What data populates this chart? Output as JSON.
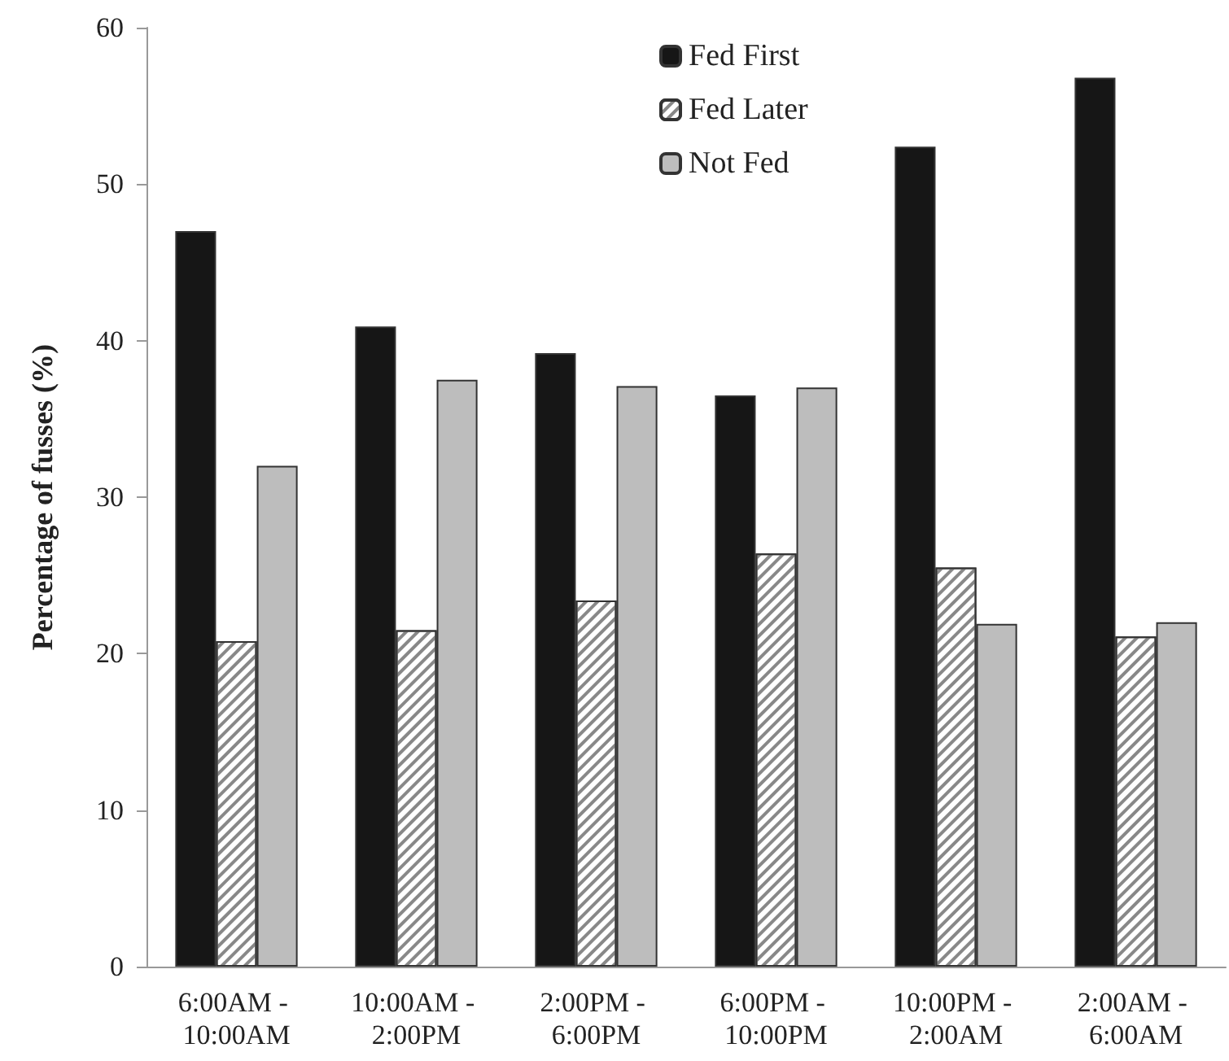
{
  "chart_data": {
    "type": "bar",
    "ylabel": "Percentage of fusses (%)",
    "categories": [
      "6:00AM - 10:00AM",
      "10:00AM - 2:00PM",
      "2:00PM - 6:00PM",
      "6:00PM - 10:00PM",
      "10:00PM - 2:00AM",
      "2:00AM - 6:00AM"
    ],
    "series": [
      {
        "name": "Fed First",
        "color": "#161616",
        "values": [
          47.0,
          40.9,
          39.2,
          36.5,
          52.4,
          56.8
        ]
      },
      {
        "name": "Fed Later",
        "color": "#ffffff",
        "values": [
          20.8,
          21.5,
          23.4,
          26.4,
          25.5,
          21.1
        ]
      },
      {
        "name": "Not Fed",
        "color": "#bdbdbd",
        "values": [
          32.0,
          37.5,
          37.1,
          37.0,
          21.9,
          22.0
        ]
      }
    ],
    "ylim": [
      0,
      60
    ],
    "yticks": [
      0,
      10,
      20,
      30,
      40,
      50,
      60
    ],
    "grid": false,
    "legend": "top"
  }
}
